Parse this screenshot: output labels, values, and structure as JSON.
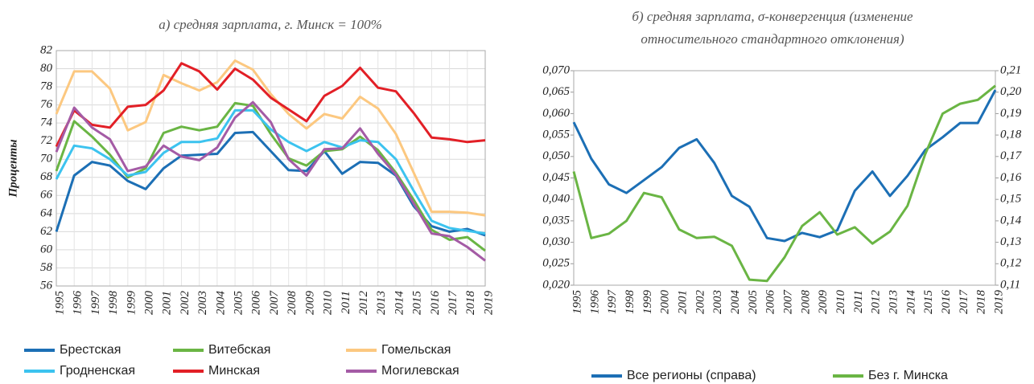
{
  "chart_data": [
    {
      "type": "line",
      "title": "а) средняя зарплата, г. Минск = 100%",
      "y_label": "Проценты",
      "categories": [
        "1995",
        "1996",
        "1997",
        "1998",
        "1999",
        "2000",
        "2001",
        "2002",
        "2003",
        "2004",
        "2005",
        "2006",
        "2007",
        "2008",
        "2009",
        "2010",
        "2011",
        "2012",
        "2013",
        "2014",
        "2015",
        "2016",
        "2017",
        "2018",
        "2019"
      ],
      "ylim": [
        56,
        82
      ],
      "yticks": [
        56,
        58,
        60,
        62,
        64,
        66,
        68,
        70,
        72,
        74,
        76,
        78,
        80,
        82
      ],
      "grid": true,
      "legend": "bottom",
      "series": [
        {
          "name": "Брестская",
          "color": "#1c6fb5",
          "values": [
            62,
            68.2,
            69.7,
            69.3,
            67.6,
            66.7,
            69,
            70.4,
            70.5,
            70.6,
            72.9,
            73,
            70.9,
            68.8,
            68.7,
            70.9,
            68.4,
            69.7,
            69.6,
            68.2,
            64.8,
            62.6,
            62,
            62.3,
            61.6
          ]
        },
        {
          "name": "Витебская",
          "color": "#6ab544",
          "values": [
            68.7,
            74.2,
            72.5,
            70.5,
            68,
            69,
            72.9,
            73.6,
            73.2,
            73.6,
            76.2,
            75.9,
            72.8,
            70.1,
            69.3,
            70.9,
            71.1,
            72.5,
            71,
            68.5,
            65.5,
            62.2,
            61.1,
            61.4,
            59.9
          ]
        },
        {
          "name": "Гомельская",
          "color": "#fcc880",
          "values": [
            75,
            79.7,
            79.7,
            77.8,
            73.2,
            74.1,
            79.3,
            78.4,
            77.6,
            78.5,
            80.9,
            79.9,
            77.2,
            75,
            73.4,
            75,
            74.5,
            76.9,
            75.6,
            72.8,
            68.5,
            64.2,
            64.2,
            64.1,
            63.8
          ]
        },
        {
          "name": "Гродненская",
          "color": "#3cc3ef",
          "values": [
            67.8,
            71.5,
            71.2,
            70,
            68.2,
            68.6,
            70.7,
            71.9,
            71.9,
            72.3,
            75.4,
            75.4,
            73.3,
            71.9,
            70.9,
            71.9,
            71.3,
            72.1,
            71.9,
            70,
            66.5,
            63.2,
            62.4,
            62.1,
            61.8
          ]
        },
        {
          "name": "Минская",
          "color": "#e21f26",
          "values": [
            71.4,
            75.4,
            73.8,
            73.5,
            75.8,
            76,
            77.6,
            80.6,
            79.7,
            77.7,
            80,
            78.8,
            76.8,
            75.5,
            74.2,
            77,
            78.1,
            80.1,
            77.9,
            77.5,
            75.1,
            72.4,
            72.2,
            71.9,
            72.1
          ]
        },
        {
          "name": "Могилевская",
          "color": "#a45ba5",
          "values": [
            70.8,
            75.7,
            73.5,
            72.2,
            68.7,
            69.2,
            71.5,
            70.3,
            69.9,
            71.3,
            74.6,
            76.3,
            74.1,
            70,
            68.2,
            71.1,
            71.2,
            73.4,
            70.6,
            68.3,
            65.1,
            61.8,
            61.5,
            60.3,
            58.8
          ]
        }
      ]
    },
    {
      "type": "line",
      "title": [
        "б) средняя зарплата, σ-конвергенция (изменение",
        "относительного стандартного отклонения)"
      ],
      "categories": [
        "1995",
        "1996",
        "1997",
        "1998",
        "1999",
        "2000",
        "2001",
        "2002",
        "2003",
        "2004",
        "2005",
        "2006",
        "2007",
        "2008",
        "2009",
        "2010",
        "2011",
        "2012",
        "2013",
        "2014",
        "2015",
        "2016",
        "2017",
        "2018",
        "2019"
      ],
      "ylim": [
        0.02,
        0.07
      ],
      "yticks": [
        {
          "value": 0.02,
          "label": "0,020"
        },
        {
          "value": 0.025,
          "label": "0,025"
        },
        {
          "value": 0.03,
          "label": "0,030"
        },
        {
          "value": 0.035,
          "label": "0,035"
        },
        {
          "value": 0.04,
          "label": "0,040"
        },
        {
          "value": 0.045,
          "label": "0,045"
        },
        {
          "value": 0.05,
          "label": "0,050"
        },
        {
          "value": 0.055,
          "label": "0,055"
        },
        {
          "value": 0.06,
          "label": "0,060"
        },
        {
          "value": 0.065,
          "label": "0,065"
        },
        {
          "value": 0.07,
          "label": "0,070"
        }
      ],
      "y2lim": [
        0.11,
        0.21
      ],
      "y2ticks": [
        {
          "value": 0.11,
          "label": "0,11"
        },
        {
          "value": 0.12,
          "label": "0,12"
        },
        {
          "value": 0.13,
          "label": "0,13"
        },
        {
          "value": 0.14,
          "label": "0,14"
        },
        {
          "value": 0.15,
          "label": "0,15"
        },
        {
          "value": 0.16,
          "label": "0,16"
        },
        {
          "value": 0.17,
          "label": "0,17"
        },
        {
          "value": 0.18,
          "label": "0,18"
        },
        {
          "value": 0.19,
          "label": "0,19"
        },
        {
          "value": 0.2,
          "label": "0,20"
        },
        {
          "value": 0.21,
          "label": "0,21"
        }
      ],
      "grid": false,
      "legend": "bottom",
      "series": [
        {
          "name": "Все регионы (справа)",
          "color": "#1c6fb5",
          "axis": "y2",
          "values": [
            0.186,
            0.169,
            0.157,
            0.153,
            0.159,
            0.165,
            0.174,
            0.178,
            0.167,
            0.1516,
            0.1466,
            0.132,
            0.1306,
            0.1344,
            0.1324,
            0.1356,
            0.154,
            0.163,
            0.1516,
            0.161,
            0.173,
            0.179,
            0.1856,
            0.1856,
            0.201
          ]
        },
        {
          "name": "Без г. Минска",
          "color": "#6ab544",
          "values": [
            0.0465,
            0.031,
            0.032,
            0.035,
            0.0415,
            0.0405,
            0.033,
            0.031,
            0.0313,
            0.0292,
            0.0213,
            0.021,
            0.0265,
            0.0338,
            0.037,
            0.0318,
            0.0335,
            0.0297,
            0.0325,
            0.0385,
            0.0505,
            0.06,
            0.0623,
            0.0632,
            0.0665
          ]
        }
      ]
    }
  ]
}
